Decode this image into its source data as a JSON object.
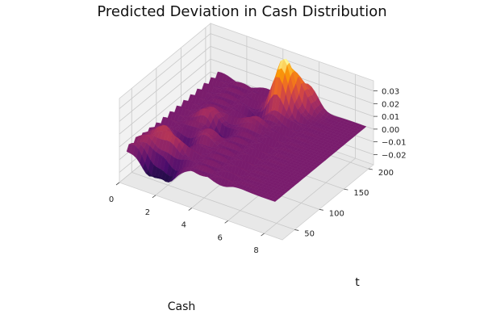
{
  "chart_data": {
    "type": "surface3d",
    "title": "Predicted Deviation in Cash Distribution",
    "xlabel": "Cash",
    "ylabel": "t",
    "zlabel": "",
    "x_ticks": [
      0,
      2,
      4,
      6,
      8
    ],
    "y_ticks": [
      50,
      100,
      150,
      200
    ],
    "z_ticks": [
      -0.02,
      -0.01,
      0.0,
      0.01,
      0.02,
      0.03
    ],
    "z_tick_labels": [
      "−0.02",
      "−0.01",
      "0.00",
      "0.01",
      "0.02",
      "0.03"
    ],
    "xlim": [
      0,
      9
    ],
    "ylim": [
      25,
      210
    ],
    "zlim": [
      -0.028,
      0.038
    ],
    "colormap": "inferno",
    "grid": true,
    "peaks": [
      {
        "cash": 4.6,
        "t": 185,
        "deviation": 0.036
      },
      {
        "cash": 5.0,
        "t": 200,
        "deviation": 0.017
      },
      {
        "cash": 5.6,
        "t": 205,
        "deviation": 0.011
      },
      {
        "cash": 2.2,
        "t": 55,
        "deviation": 0.012
      },
      {
        "cash": 1.4,
        "t": 65,
        "deviation": 0.011
      },
      {
        "cash": 2.3,
        "t": 125,
        "deviation": 0.01
      },
      {
        "cash": 1.1,
        "t": 40,
        "deviation": 0.008
      },
      {
        "cash": 3.0,
        "t": 95,
        "deviation": 0.007
      },
      {
        "cash": 4.0,
        "t": 150,
        "deviation": 0.009
      }
    ],
    "troughs": [
      {
        "cash": 1.6,
        "t": 25,
        "deviation": -0.017
      },
      {
        "cash": 2.6,
        "t": 30,
        "deviation": -0.015
      },
      {
        "cash": 2.1,
        "t": 75,
        "deviation": -0.012
      },
      {
        "cash": 3.0,
        "t": 115,
        "deviation": -0.01
      },
      {
        "cash": 3.9,
        "t": 160,
        "deviation": -0.01
      }
    ]
  }
}
